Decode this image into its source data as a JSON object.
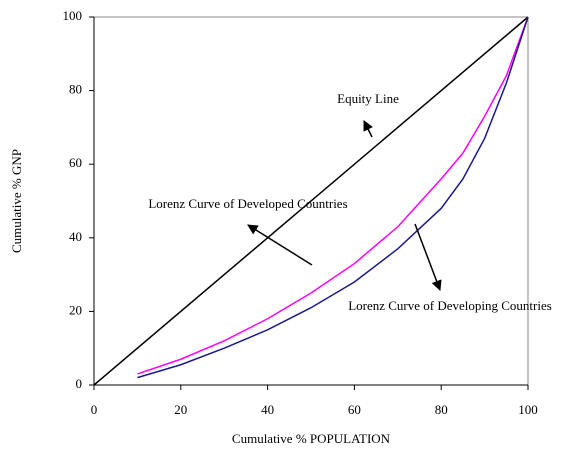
{
  "chart_data": {
    "type": "line",
    "x_label": "Cumulative % POPULATION",
    "y_label": "Cumulative % GNP",
    "xlim": [
      0,
      100
    ],
    "ylim": [
      0,
      100
    ],
    "xticks": [
      0,
      20,
      40,
      60,
      80,
      100
    ],
    "yticks": [
      0,
      20,
      40,
      60,
      80,
      100
    ],
    "series": [
      {
        "name": "Equity Line",
        "color": "#000000",
        "x": [
          0,
          100
        ],
        "values": [
          0,
          100
        ]
      },
      {
        "name": "Lorenz Curve of Developed Countries",
        "color": "#ff00ff",
        "x": [
          10,
          20,
          30,
          40,
          50,
          60,
          70,
          80,
          85,
          90,
          95,
          100
        ],
        "values": [
          3,
          7,
          12,
          18,
          25,
          33,
          43,
          56,
          63,
          73,
          84,
          100
        ]
      },
      {
        "name": "Lorenz Curve of Developing Countries",
        "color": "#1a1a8c",
        "x": [
          10,
          20,
          30,
          40,
          50,
          60,
          70,
          80,
          85,
          90,
          95,
          100
        ],
        "values": [
          2,
          5.5,
          10,
          15,
          21,
          28,
          37,
          48,
          56,
          67,
          82,
          100
        ]
      }
    ]
  }
}
